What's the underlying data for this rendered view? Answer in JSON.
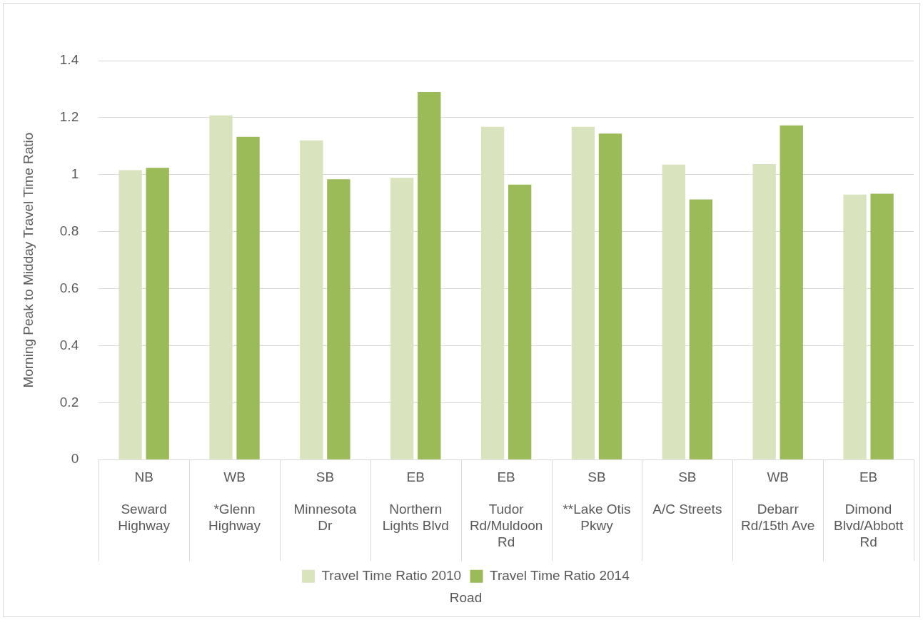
{
  "chart_data": {
    "type": "bar",
    "annotations": [
      "Road"
    ],
    "ylabel": "Morning Peak to Midday Travel Time Ratio",
    "categories": [
      "NB\nSeward Highway",
      "WB\n*Glenn Highway",
      "SB\nMinnesota Dr",
      "EB\nNorthern Lights Blvd",
      "EB\nTudor Rd/Muldoon Rd",
      "SB\n**Lake Otis Pkwy",
      "SB\nA/C Streets",
      "WB\nDebarr Rd/15th Ave",
      "EB\nDimond Blvd/Abbott Rd"
    ],
    "series": [
      {
        "name": "Travel Time Ratio 2010",
        "color": "#d9e4bf",
        "values": [
          1.016,
          1.208,
          1.12,
          0.989,
          1.168,
          1.168,
          1.035,
          1.037,
          0.93
        ]
      },
      {
        "name": "Travel Time Ratio 2014",
        "color": "#9bbb59",
        "values": [
          1.024,
          1.133,
          0.984,
          1.29,
          0.965,
          1.144,
          0.913,
          1.173,
          0.933
        ]
      }
    ],
    "ylim": [
      0,
      1.4
    ],
    "yticks": [
      0,
      0.2,
      0.4,
      0.6,
      0.8,
      1,
      1.2,
      1.4
    ],
    "grid": "y",
    "legend": "bottom"
  }
}
